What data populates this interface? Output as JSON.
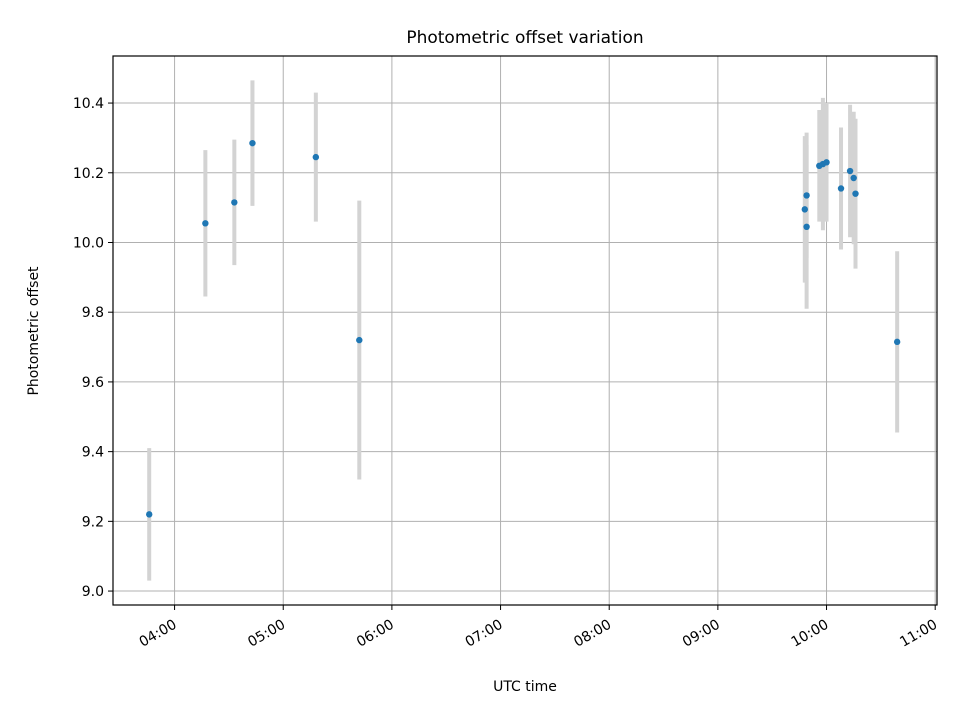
{
  "chart_data": {
    "type": "scatter",
    "title": "Photometric offset variation",
    "xlabel": "UTC time",
    "ylabel": "Photometric offset",
    "x_ticks": [
      "04:00",
      "05:00",
      "06:00",
      "07:00",
      "08:00",
      "09:00",
      "10:00",
      "11:00"
    ],
    "y_ticks": [
      "9.0",
      "9.2",
      "9.4",
      "9.6",
      "9.8",
      "10.0",
      "10.2",
      "10.4"
    ],
    "xlim": [
      "03:26",
      "11:01"
    ],
    "ylim": [
      8.96,
      10.535
    ],
    "grid": true,
    "point_color": "#1f77b4",
    "errorbar_color": "#d3d3d3",
    "points": [
      {
        "x": "03:46",
        "y": 9.22,
        "yerr": 0.19
      },
      {
        "x": "04:17",
        "y": 10.055,
        "yerr": 0.21
      },
      {
        "x": "04:33",
        "y": 10.115,
        "yerr": 0.18
      },
      {
        "x": "04:43",
        "y": 10.285,
        "yerr": 0.18
      },
      {
        "x": "05:18",
        "y": 10.245,
        "yerr": 0.185
      },
      {
        "x": "05:42",
        "y": 9.72,
        "yerr": 0.4
      },
      {
        "x": "09:48",
        "y": 10.095,
        "yerr": 0.21
      },
      {
        "x": "09:49",
        "y": 10.135,
        "yerr": 0.18
      },
      {
        "x": "09:49",
        "y": 10.045,
        "yerr": 0.235
      },
      {
        "x": "09:56",
        "y": 10.22,
        "yerr": 0.16
      },
      {
        "x": "09:58",
        "y": 10.225,
        "yerr": 0.19
      },
      {
        "x": "10:00",
        "y": 10.23,
        "yerr": 0.17
      },
      {
        "x": "10:08",
        "y": 10.155,
        "yerr": 0.175
      },
      {
        "x": "10:13",
        "y": 10.205,
        "yerr": 0.19
      },
      {
        "x": "10:15",
        "y": 10.185,
        "yerr": 0.19
      },
      {
        "x": "10:16",
        "y": 10.14,
        "yerr": 0.215
      },
      {
        "x": "10:39",
        "y": 9.715,
        "yerr": 0.26
      }
    ]
  }
}
